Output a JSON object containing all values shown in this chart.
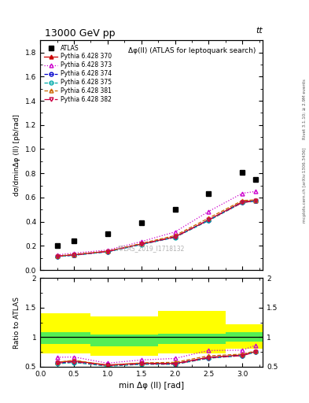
{
  "title": "13000 GeV pp",
  "title_right": "tt",
  "plot_title": "Δφ(ll) (ATLAS for leptoquark search)",
  "watermark": "ATLAS_2019_I1718132",
  "ylabel_main": "dσ/dminΔφ (ll) [pb/rad]",
  "ylabel_ratio": "Ratio to ATLAS",
  "xlabel": "min Δφ (ll) [rad]",
  "right_label_top": "Rivet 3.1.10; ≥ 2.9M events",
  "right_label_bottom": "mcplots.cern.ch [arXiv:1306.3436]",
  "xlim": [
    0,
    3.3
  ],
  "ylim_main": [
    0,
    1.9
  ],
  "ylim_ratio": [
    0.5,
    2.0
  ],
  "atlas_x": [
    0.25,
    0.5,
    1.0,
    1.5,
    2.0,
    2.5,
    3.0,
    3.2
  ],
  "atlas_y": [
    0.2,
    0.24,
    0.3,
    0.39,
    0.5,
    0.63,
    0.81,
    0.75
  ],
  "mc_x": [
    0.25,
    0.5,
    1.0,
    1.5,
    2.0,
    2.5,
    3.0,
    3.2
  ],
  "pythia370_y": [
    0.115,
    0.125,
    0.155,
    0.215,
    0.275,
    0.415,
    0.565,
    0.575
  ],
  "pythia373_y": [
    0.125,
    0.14,
    0.165,
    0.235,
    0.315,
    0.485,
    0.635,
    0.65
  ],
  "pythia374_y": [
    0.112,
    0.123,
    0.152,
    0.213,
    0.272,
    0.413,
    0.56,
    0.572
  ],
  "pythia375_y": [
    0.11,
    0.122,
    0.15,
    0.21,
    0.27,
    0.408,
    0.558,
    0.57
  ],
  "pythia381_y": [
    0.115,
    0.13,
    0.155,
    0.22,
    0.285,
    0.43,
    0.575,
    0.58
  ],
  "pythia382_y": [
    0.113,
    0.124,
    0.153,
    0.213,
    0.272,
    0.414,
    0.558,
    0.572
  ],
  "ratio370_y": [
    0.575,
    0.6,
    0.53,
    0.56,
    0.555,
    0.66,
    0.7,
    0.76
  ],
  "ratio373_y": [
    0.66,
    0.665,
    0.56,
    0.615,
    0.64,
    0.775,
    0.78,
    0.865
  ],
  "ratio374_y": [
    0.56,
    0.585,
    0.525,
    0.55,
    0.548,
    0.65,
    0.69,
    0.755
  ],
  "ratio375_y": [
    0.548,
    0.572,
    0.508,
    0.54,
    0.54,
    0.642,
    0.69,
    0.75
  ],
  "ratio381_y": [
    0.575,
    0.61,
    0.525,
    0.565,
    0.575,
    0.685,
    0.713,
    0.77
  ],
  "ratio382_y": [
    0.56,
    0.585,
    0.52,
    0.548,
    0.545,
    0.65,
    0.688,
    0.752
  ],
  "band_x_edges": [
    0.0,
    0.375,
    0.75,
    1.25,
    1.75,
    2.25,
    2.75,
    3.14159,
    3.3
  ],
  "green_band_lower": [
    0.88,
    0.88,
    0.85,
    0.85,
    0.88,
    0.88,
    0.92,
    0.92,
    0.92
  ],
  "green_band_upper": [
    1.08,
    1.08,
    1.04,
    1.04,
    1.06,
    1.06,
    1.08,
    1.08,
    1.08
  ],
  "yellow_band_lower": [
    0.72,
    0.72,
    0.68,
    0.68,
    0.72,
    0.72,
    0.8,
    0.8,
    0.8
  ],
  "yellow_band_upper": [
    1.4,
    1.4,
    1.35,
    1.35,
    1.45,
    1.45,
    1.22,
    1.22,
    1.22
  ],
  "colors": {
    "pythia370": "#cc0000",
    "pythia373": "#cc00cc",
    "pythia374": "#0000cc",
    "pythia375": "#00aaaa",
    "pythia381": "#cc6600",
    "pythia382": "#cc0044"
  }
}
